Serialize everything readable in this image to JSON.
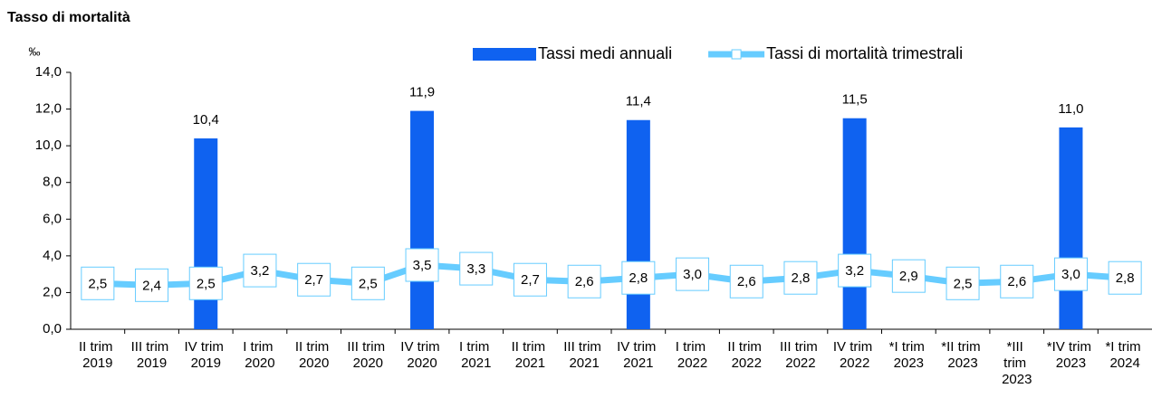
{
  "chart_data": {
    "type": "bar-line",
    "title": "Tasso di mortalità",
    "y_label": "‰",
    "categories": [
      "II trim 2019",
      "III trim 2019",
      "IV trim 2019",
      "I trim 2020",
      "II trim 2020",
      "III trim 2020",
      "IV trim 2020",
      "I trim 2021",
      "II trim 2021",
      "III trim 2021",
      "IV trim 2021",
      "I trim 2022",
      "II trim 2022",
      "III trim 2022",
      "IV trim 2022",
      "*I trim 2023",
      "*II trim 2023",
      "*III trim 2023",
      "*IV trim 2023",
      "*I trim 2024"
    ],
    "series": [
      {
        "name": "Tassi medi annuali",
        "type": "bar",
        "color": "#0f62f0",
        "values": [
          null,
          null,
          10.4,
          null,
          null,
          null,
          11.9,
          null,
          null,
          null,
          11.4,
          null,
          null,
          null,
          11.5,
          null,
          null,
          null,
          11.0,
          null
        ],
        "value_labels": [
          null,
          null,
          "10,4",
          null,
          null,
          null,
          "11,9",
          null,
          null,
          null,
          "11,4",
          null,
          null,
          null,
          "11,5",
          null,
          null,
          null,
          "11,0",
          null
        ]
      },
      {
        "name": "Tassi di mortalità trimestrali",
        "type": "line",
        "color": "#66ccff",
        "values": [
          2.5,
          2.4,
          2.5,
          3.2,
          2.7,
          2.5,
          3.5,
          3.3,
          2.7,
          2.6,
          2.8,
          3.0,
          2.6,
          2.8,
          3.2,
          2.9,
          2.5,
          2.6,
          3.0,
          2.8
        ],
        "value_labels": [
          "2,5",
          "2,4",
          "2,5",
          "3,2",
          "2,7",
          "2,5",
          "3,5",
          "3,3",
          "2,7",
          "2,6",
          "2,8",
          "3,0",
          "2,6",
          "2,8",
          "3,2",
          "2,9",
          "2,5",
          "2,6",
          "3,0",
          "2,8"
        ]
      }
    ],
    "ylim": [
      0,
      14
    ],
    "yticks": [
      {
        "value": 0,
        "label": "0,0"
      },
      {
        "value": 2,
        "label": "2,0"
      },
      {
        "value": 4,
        "label": "4,0"
      },
      {
        "value": 6,
        "label": "6,0"
      },
      {
        "value": 8,
        "label": "8,0"
      },
      {
        "value": 10,
        "label": "10,0"
      },
      {
        "value": 12,
        "label": "12,0"
      },
      {
        "value": 14,
        "label": "14,0"
      }
    ],
    "legend_position": "top"
  }
}
